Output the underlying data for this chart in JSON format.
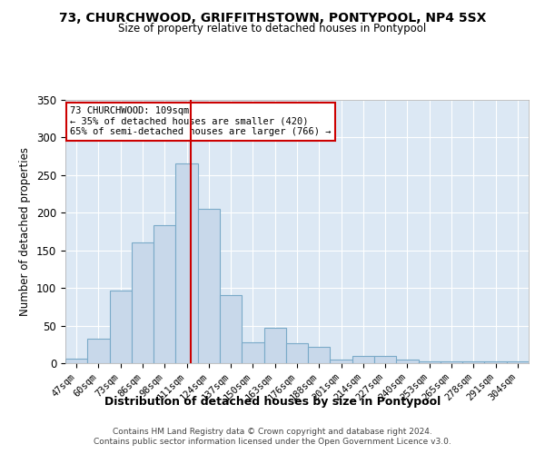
{
  "title1": "73, CHURCHWOOD, GRIFFITHSTOWN, PONTYPOOL, NP4 5SX",
  "title2": "Size of property relative to detached houses in Pontypool",
  "xlabel": "Distribution of detached houses by size in Pontypool",
  "ylabel": "Number of detached properties",
  "categories": [
    "47sqm",
    "60sqm",
    "73sqm",
    "86sqm",
    "98sqm",
    "111sqm",
    "124sqm",
    "137sqm",
    "150sqm",
    "163sqm",
    "176sqm",
    "188sqm",
    "201sqm",
    "214sqm",
    "227sqm",
    "240sqm",
    "253sqm",
    "265sqm",
    "278sqm",
    "291sqm",
    "304sqm"
  ],
  "values": [
    6,
    32,
    96,
    160,
    183,
    265,
    205,
    90,
    28,
    47,
    27,
    22,
    5,
    10,
    10,
    5,
    3,
    3,
    3,
    3,
    3
  ],
  "bar_color": "#c8d8ea",
  "bar_edge_color": "#7aaac8",
  "bg_color": "#dce8f4",
  "annotation_line1": "73 CHURCHWOOD: 109sqm",
  "annotation_line2": "← 35% of detached houses are smaller (420)",
  "annotation_line3": "65% of semi-detached houses are larger (766) →",
  "annotation_box_color": "white",
  "annotation_box_edge": "#cc0000",
  "vline_color": "#cc0000",
  "vline_x": 5.18,
  "ylim": [
    0,
    350
  ],
  "yticks": [
    0,
    50,
    100,
    150,
    200,
    250,
    300,
    350
  ],
  "footer1": "Contains HM Land Registry data © Crown copyright and database right 2024.",
  "footer2": "Contains public sector information licensed under the Open Government Licence v3.0."
}
